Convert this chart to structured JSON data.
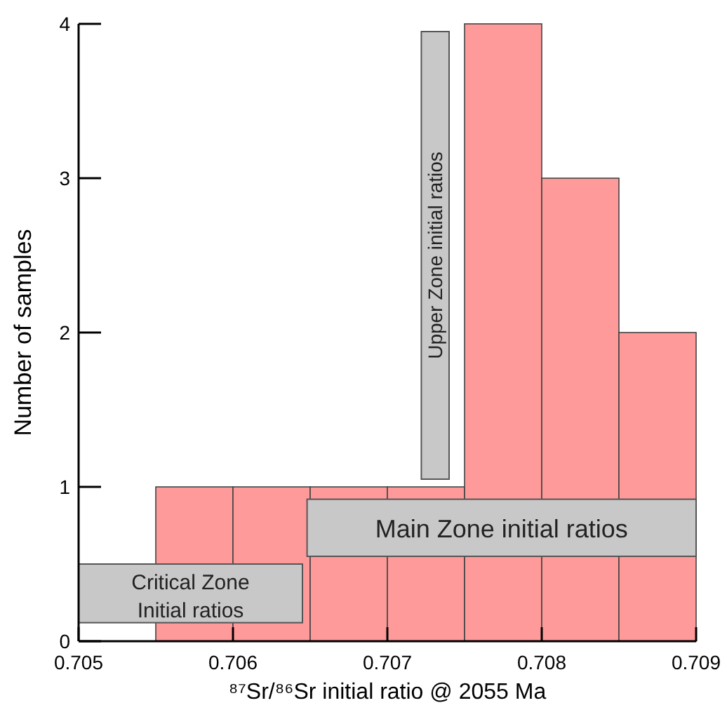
{
  "chart_data": {
    "type": "histogram",
    "xlabel": "⁸⁷Sr/⁸⁶Sr initial ratio @ 2055 Ma",
    "ylabel": "Number of samples",
    "bins": [
      0.7055,
      0.706,
      0.7065,
      0.707,
      0.7075,
      0.708,
      0.7085,
      0.709
    ],
    "values": [
      1,
      1,
      1,
      1,
      4,
      3,
      2
    ],
    "color": "#ff9a9a",
    "xlim": [
      0.705,
      0.709
    ],
    "xticks": [
      0.705,
      0.706,
      0.707,
      0.708,
      0.709
    ],
    "ylim": [
      0,
      4
    ],
    "yticks": [
      0,
      1,
      2,
      3,
      4
    ],
    "grid": false,
    "bands": [
      {
        "axis": "x",
        "from": 0.705,
        "to": 0.70645,
        "label": "Critical Zone\nInitial ratios",
        "color": "#c8c8c8"
      },
      {
        "axis": "x",
        "from": 0.70648,
        "to": 0.709,
        "label": "Main Zone initial ratios",
        "color": "#c8c8c8"
      },
      {
        "axis": "x",
        "from": 0.70722,
        "to": 0.7074,
        "label": "Upper Zone initial ratios",
        "color": "#c8c8c8"
      }
    ]
  }
}
